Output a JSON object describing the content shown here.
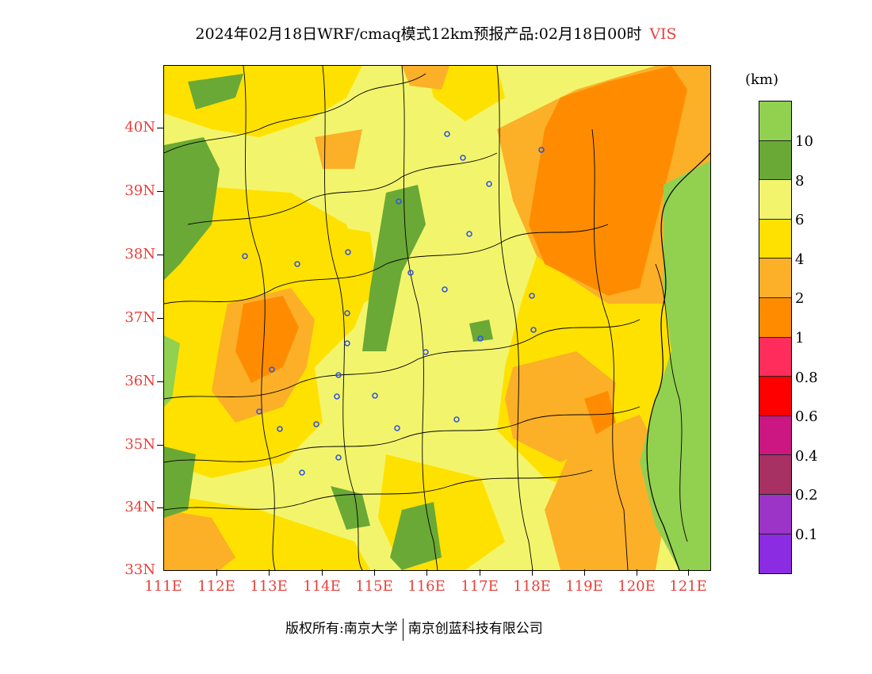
{
  "title": {
    "text": "2024年02月18日WRF/cmaq模式12km预报产品:02月18日00时",
    "variable": "VIS"
  },
  "map": {
    "lat_labels": [
      "40N",
      "39N",
      "38N",
      "37N",
      "36N",
      "35N",
      "34N",
      "33N"
    ],
    "lon_labels": [
      "111E",
      "112E",
      "113E",
      "114E",
      "115E",
      "116E",
      "117E",
      "118E",
      "119E",
      "120E",
      "121E"
    ],
    "city_marker_color": "#3355dd"
  },
  "colorbar": {
    "unit": "(km)",
    "colors": [
      "#92d050",
      "#6aa935",
      "#f2f56c",
      "#ffe100",
      "#fbb028",
      "#ff8c00",
      "#fe2d5b",
      "#ff0000",
      "#cc1681",
      "#a83163",
      "#9c34c8",
      "#8b2be2"
    ],
    "labels": [
      "10",
      "8",
      "6",
      "4",
      "2",
      "1",
      "0.8",
      "0.6",
      "0.4",
      "0.2",
      "0.1"
    ]
  },
  "footer": {
    "left": "版权所有:南京大学",
    "right": "南京创蓝科技有限公司"
  }
}
